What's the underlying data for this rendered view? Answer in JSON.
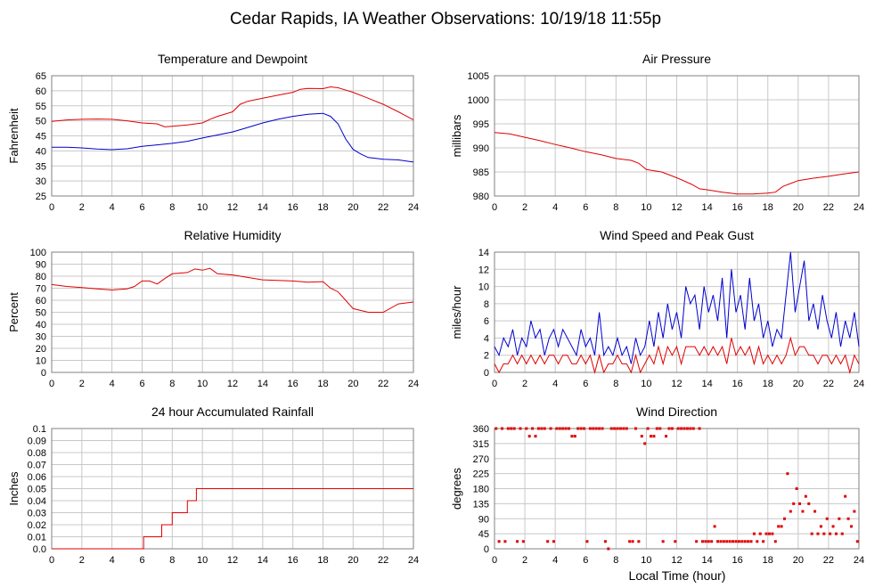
{
  "page_title": "Cedar Rapids, IA Weather Observations: 10/19/18 11:55p",
  "footer_xlabel": "Local Time (hour)",
  "colors": {
    "red": "#e00000",
    "blue": "#0000d0",
    "grid": "#c8c8c8",
    "frame": "#808080"
  },
  "chart_data": [
    {
      "id": "temperature",
      "type": "line",
      "title": "Temperature and Dewpoint",
      "xlabel": "",
      "ylabel": "Fahrenheit",
      "xlim": [
        0,
        24
      ],
      "ylim": [
        25,
        65
      ],
      "xticks": [
        0,
        2,
        4,
        6,
        8,
        10,
        12,
        14,
        16,
        18,
        20,
        22,
        24
      ],
      "yticks": [
        25,
        30,
        35,
        40,
        45,
        50,
        55,
        60,
        65
      ],
      "grid": true,
      "series": [
        {
          "color": "red",
          "mode": "line",
          "x": [
            0,
            1,
            2,
            3,
            4,
            5,
            6,
            7,
            7.5,
            8,
            9,
            10,
            10.5,
            11,
            12,
            12.5,
            13,
            14,
            15,
            16,
            16.5,
            17,
            18,
            18.5,
            19,
            20,
            21,
            22,
            23,
            24
          ],
          "values": [
            49.8,
            50.3,
            50.5,
            50.6,
            50.5,
            50.0,
            49.3,
            49.0,
            48.0,
            48.2,
            48.6,
            49.3,
            50.5,
            51.5,
            53.0,
            55.5,
            56.5,
            57.5,
            58.5,
            59.5,
            60.5,
            60.8,
            60.7,
            61.3,
            61.0,
            59.5,
            57.5,
            55.5,
            53.0,
            50.3
          ]
        },
        {
          "color": "blue",
          "mode": "line",
          "x": [
            0,
            1,
            2,
            3,
            4,
            5,
            6,
            7,
            8,
            9,
            10,
            11,
            12,
            13,
            14,
            15,
            16,
            17,
            18,
            18.5,
            19,
            19.5,
            20,
            20.5,
            21,
            22,
            23,
            24
          ],
          "values": [
            41.2,
            41.2,
            41.0,
            40.6,
            40.4,
            40.7,
            41.5,
            42.0,
            42.5,
            43.2,
            44.3,
            45.3,
            46.3,
            47.8,
            49.3,
            50.5,
            51.5,
            52.2,
            52.5,
            51.5,
            49.0,
            44.0,
            40.5,
            39.0,
            37.8,
            37.2,
            37.0,
            36.3
          ]
        }
      ]
    },
    {
      "id": "pressure",
      "type": "line",
      "title": "Air Pressure",
      "xlabel": "",
      "ylabel": "millibars",
      "xlim": [
        0,
        24
      ],
      "ylim": [
        980,
        1005
      ],
      "xticks": [
        0,
        2,
        4,
        6,
        8,
        10,
        12,
        14,
        16,
        18,
        20,
        22,
        24
      ],
      "yticks": [
        980,
        985,
        990,
        995,
        1000,
        1005
      ],
      "grid": true,
      "series": [
        {
          "color": "red",
          "mode": "line",
          "x": [
            0,
            1,
            2,
            3,
            4,
            5,
            6,
            7,
            8,
            9,
            9.5,
            10,
            11,
            12,
            13,
            13.5,
            14,
            15,
            16,
            17,
            18,
            18.5,
            19,
            20,
            21,
            22,
            23,
            24
          ],
          "values": [
            993.2,
            992.9,
            992.2,
            991.5,
            990.7,
            990.0,
            989.2,
            988.6,
            987.8,
            987.4,
            986.8,
            985.5,
            985.0,
            983.8,
            982.4,
            981.5,
            981.3,
            980.8,
            980.4,
            980.4,
            980.6,
            980.8,
            982.0,
            983.2,
            983.7,
            984.1,
            984.6,
            985.0
          ]
        }
      ]
    },
    {
      "id": "humidity",
      "type": "line",
      "title": "Relative Humidity",
      "xlabel": "",
      "ylabel": "Percent",
      "xlim": [
        0,
        24
      ],
      "ylim": [
        0,
        100
      ],
      "xticks": [
        0,
        2,
        4,
        6,
        8,
        10,
        12,
        14,
        16,
        18,
        20,
        22,
        24
      ],
      "yticks": [
        0,
        10,
        20,
        30,
        40,
        50,
        60,
        70,
        80,
        90,
        100
      ],
      "grid": true,
      "series": [
        {
          "color": "red",
          "mode": "line",
          "x": [
            0,
            1,
            2,
            3,
            4,
            5,
            5.5,
            6,
            6.5,
            7,
            7.5,
            8,
            9,
            9.5,
            10,
            10.5,
            11,
            12,
            13,
            14,
            15,
            16,
            17,
            18,
            18.5,
            19,
            19.5,
            20,
            21,
            22,
            23,
            24
          ],
          "values": [
            73,
            71.5,
            70.5,
            69.5,
            68.5,
            69.5,
            71.5,
            76,
            76,
            73.5,
            78,
            82,
            83,
            86,
            85,
            86.5,
            82,
            81,
            79,
            77,
            76.5,
            76,
            75,
            75.5,
            70,
            67,
            60,
            53,
            50,
            50,
            57,
            58.5
          ]
        }
      ]
    },
    {
      "id": "wind_speed",
      "type": "line",
      "title": "Wind Speed and Peak Gust",
      "xlabel": "",
      "ylabel": "miles/hour",
      "xlim": [
        0,
        24
      ],
      "ylim": [
        0,
        14
      ],
      "xticks": [
        0,
        2,
        4,
        6,
        8,
        10,
        12,
        14,
        16,
        18,
        20,
        22,
        24
      ],
      "yticks": [
        0,
        2,
        4,
        6,
        8,
        10,
        12,
        14
      ],
      "grid": true,
      "series": [
        {
          "color": "blue",
          "mode": "line",
          "x": [
            0,
            0.3,
            0.6,
            0.9,
            1.2,
            1.5,
            1.8,
            2.1,
            2.4,
            2.7,
            3.0,
            3.3,
            3.6,
            3.9,
            4.2,
            4.5,
            4.8,
            5.1,
            5.4,
            5.7,
            6.0,
            6.3,
            6.6,
            6.9,
            7.2,
            7.5,
            7.8,
            8.1,
            8.4,
            8.7,
            9.0,
            9.3,
            9.6,
            9.9,
            10.2,
            10.5,
            10.8,
            11.1,
            11.4,
            11.7,
            12.0,
            12.3,
            12.6,
            12.9,
            13.2,
            13.5,
            13.8,
            14.1,
            14.4,
            14.7,
            15.0,
            15.3,
            15.6,
            15.9,
            16.2,
            16.5,
            16.8,
            17.1,
            17.4,
            17.7,
            18.0,
            18.3,
            18.6,
            18.9,
            19.2,
            19.5,
            19.8,
            20.1,
            20.4,
            20.7,
            21.0,
            21.3,
            21.6,
            21.9,
            22.2,
            22.5,
            22.8,
            23.1,
            23.4,
            23.7,
            24.0
          ],
          "values": [
            3,
            2,
            4,
            3,
            5,
            2,
            4,
            3,
            6,
            4,
            5,
            2,
            4,
            5,
            3,
            5,
            4,
            3,
            2,
            5,
            3,
            4,
            2,
            7,
            2,
            3,
            2,
            4,
            2,
            3,
            1,
            4,
            2,
            3,
            6,
            3,
            7,
            4,
            8,
            5,
            7,
            4,
            10,
            8,
            9,
            5,
            10,
            7,
            9,
            6,
            11,
            4,
            12,
            7,
            9,
            5,
            11,
            6,
            8,
            4,
            6,
            3,
            5,
            4,
            9,
            14,
            7,
            10,
            13,
            6,
            8,
            5,
            9,
            6,
            4,
            7,
            3,
            6,
            4,
            7,
            3
          ]
        },
        {
          "color": "red",
          "mode": "line",
          "x": [
            0,
            0.3,
            0.6,
            0.9,
            1.2,
            1.5,
            1.8,
            2.1,
            2.4,
            2.7,
            3.0,
            3.3,
            3.6,
            3.9,
            4.2,
            4.5,
            4.8,
            5.1,
            5.4,
            5.7,
            6.0,
            6.3,
            6.6,
            6.9,
            7.2,
            7.5,
            7.8,
            8.1,
            8.4,
            8.7,
            9.0,
            9.3,
            9.6,
            9.9,
            10.2,
            10.5,
            10.8,
            11.1,
            11.4,
            11.7,
            12.0,
            12.3,
            12.6,
            12.9,
            13.2,
            13.5,
            13.8,
            14.1,
            14.4,
            14.7,
            15.0,
            15.3,
            15.6,
            15.9,
            16.2,
            16.5,
            16.8,
            17.1,
            17.4,
            17.7,
            18.0,
            18.3,
            18.6,
            18.9,
            19.2,
            19.5,
            19.8,
            20.1,
            20.4,
            20.7,
            21.0,
            21.3,
            21.6,
            21.9,
            22.2,
            22.5,
            22.8,
            23.1,
            23.4,
            23.7,
            24.0
          ],
          "values": [
            1,
            0,
            1,
            1,
            2,
            1,
            2,
            1,
            2,
            1,
            2,
            1,
            2,
            2,
            1,
            2,
            2,
            1,
            1,
            2,
            1,
            2,
            0,
            2,
            0,
            1,
            1,
            2,
            1,
            1,
            0,
            2,
            0,
            1,
            2,
            1,
            3,
            1,
            3,
            2,
            3,
            1,
            3,
            3,
            3,
            2,
            3,
            2,
            3,
            2,
            3,
            1,
            4,
            2,
            3,
            2,
            3,
            1,
            3,
            1,
            2,
            1,
            2,
            1,
            2,
            4,
            2,
            3,
            3,
            2,
            2,
            1,
            2,
            2,
            1,
            2,
            1,
            2,
            0,
            2,
            1
          ]
        }
      ]
    },
    {
      "id": "rainfall",
      "type": "line",
      "title": "24 hour Accumulated Rainfall",
      "xlabel": "",
      "ylabel": "Inches",
      "xlim": [
        0,
        24
      ],
      "ylim": [
        0,
        0.1
      ],
      "xticks": [
        0,
        2,
        4,
        6,
        8,
        10,
        12,
        14,
        16,
        18,
        20,
        22,
        24
      ],
      "yticks": [
        "0.0",
        "0.01",
        "0.02",
        "0.03",
        "0.04",
        "0.05",
        "0.06",
        "0.07",
        "0.08",
        "0.09",
        "0.1"
      ],
      "grid": true,
      "series": [
        {
          "color": "red",
          "mode": "step",
          "x": [
            0,
            6.1,
            7.3,
            7.5,
            8.0,
            8.5,
            9.0,
            9.6,
            24
          ],
          "values": [
            0.0,
            0.01,
            0.02,
            0.02,
            0.03,
            0.03,
            0.04,
            0.05,
            0.05
          ]
        }
      ]
    },
    {
      "id": "wind_direction",
      "type": "scatter",
      "title": "Wind Direction",
      "xlabel": "Local Time (hour)",
      "ylabel": "degrees",
      "xlim": [
        0,
        24
      ],
      "ylim": [
        0,
        360
      ],
      "xticks": [
        0,
        2,
        4,
        6,
        8,
        10,
        12,
        14,
        16,
        18,
        20,
        22,
        24
      ],
      "yticks": [
        0,
        45,
        90,
        135,
        180,
        225,
        270,
        315,
        360
      ],
      "grid": true,
      "series": [
        {
          "color": "red",
          "mode": "points",
          "x": [
            0.1,
            0.3,
            0.5,
            0.7,
            0.9,
            1.1,
            1.3,
            1.5,
            1.7,
            1.9,
            2.1,
            2.3,
            2.5,
            2.7,
            2.9,
            3.1,
            3.3,
            3.5,
            3.7,
            3.9,
            4.1,
            4.3,
            4.5,
            4.7,
            4.9,
            5.1,
            5.3,
            5.5,
            5.7,
            5.9,
            6.1,
            6.3,
            6.5,
            6.7,
            6.9,
            7.1,
            7.3,
            7.5,
            7.7,
            7.9,
            8.1,
            8.3,
            8.5,
            8.7,
            8.9,
            9.1,
            9.3,
            9.5,
            9.7,
            9.9,
            10.1,
            10.3,
            10.5,
            10.7,
            10.9,
            11.1,
            11.3,
            11.5,
            11.7,
            11.9,
            12.1,
            12.3,
            12.5,
            12.7,
            12.9,
            13.1,
            13.3,
            13.5,
            13.7,
            13.9,
            14.1,
            14.3,
            14.5,
            14.7,
            14.9,
            15.1,
            15.3,
            15.5,
            15.7,
            15.9,
            16.1,
            16.3,
            16.5,
            16.7,
            16.9,
            17.1,
            17.3,
            17.5,
            17.7,
            17.9,
            18.1,
            18.3,
            18.5,
            18.7,
            18.9,
            19.1,
            19.3,
            19.5,
            19.7,
            19.9,
            20.1,
            20.3,
            20.5,
            20.7,
            20.9,
            21.1,
            21.3,
            21.5,
            21.7,
            21.9,
            22.1,
            22.3,
            22.5,
            22.7,
            22.9,
            23.1,
            23.3,
            23.5,
            23.7,
            23.9
          ],
          "values": [
            360,
            22,
            360,
            22,
            360,
            360,
            360,
            22,
            360,
            22,
            360,
            337,
            360,
            337,
            360,
            360,
            360,
            22,
            360,
            22,
            360,
            360,
            360,
            360,
            360,
            337,
            337,
            360,
            360,
            360,
            22,
            360,
            360,
            360,
            360,
            360,
            22,
            0,
            360,
            360,
            360,
            360,
            360,
            360,
            22,
            22,
            360,
            22,
            337,
            315,
            360,
            337,
            337,
            360,
            360,
            22,
            337,
            360,
            360,
            22,
            360,
            360,
            360,
            360,
            360,
            360,
            22,
            360,
            22,
            22,
            22,
            22,
            67,
            22,
            22,
            22,
            22,
            22,
            22,
            22,
            22,
            22,
            22,
            22,
            22,
            45,
            22,
            45,
            22,
            45,
            45,
            45,
            22,
            67,
            67,
            90,
            225,
            112,
            135,
            180,
            135,
            112,
            157,
            135,
            45,
            112,
            45,
            67,
            45,
            90,
            45,
            67,
            45,
            90,
            45,
            157,
            90,
            67,
            112,
            22
          ]
        }
      ]
    }
  ]
}
